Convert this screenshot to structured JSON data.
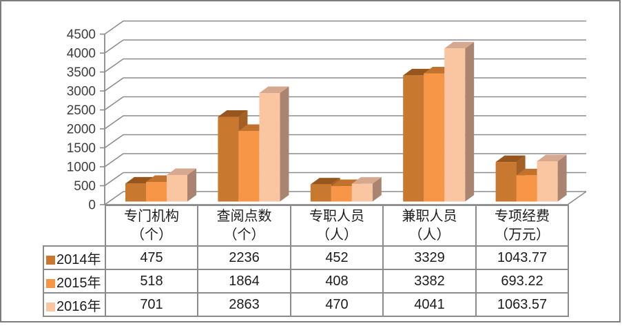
{
  "window": {
    "background": "#FFFFFF",
    "frame_border_color": "#7C7C7C"
  },
  "chart_data": {
    "type": "bar",
    "projection": "3d-clustered-column",
    "title": "",
    "categories": [
      {
        "label": "专门机构",
        "unit": "（个）"
      },
      {
        "label": "查阅点数",
        "unit": "（个）"
      },
      {
        "label": "专职人员",
        "unit": "（人）"
      },
      {
        "label": "兼职人员",
        "unit": "（人）"
      },
      {
        "label": "专项经费",
        "unit": "（万元）"
      }
    ],
    "series": [
      {
        "name": "2014年",
        "values": [
          475,
          2236,
          452,
          3329,
          1043.77
        ],
        "color": "#C9782F",
        "color_top": "#96561E",
        "color_side": "#A45F24"
      },
      {
        "name": "2015年",
        "values": [
          518,
          1864,
          408,
          3382,
          693.22
        ],
        "color": "#F79646",
        "color_top": "#C0722E",
        "color_side": "#BE7333"
      },
      {
        "name": "2016年",
        "values": [
          701,
          2863,
          470,
          4041,
          1063.57
        ],
        "color": "#FAC6A1",
        "color_top": "#D6A88F",
        "color_side": "#A98471"
      }
    ],
    "y_axis": {
      "min": 0,
      "max": 4500,
      "step": 500,
      "tick_labels": [
        "0",
        "500",
        "1000",
        "1500",
        "2000",
        "2500",
        "3000",
        "3500",
        "4000",
        "4500"
      ]
    },
    "grid": true,
    "gridline_color": "#8B8B8B",
    "axis_text_color": "#3D3D3D",
    "legend_position": "data-table-left",
    "data_table_shown": true
  }
}
